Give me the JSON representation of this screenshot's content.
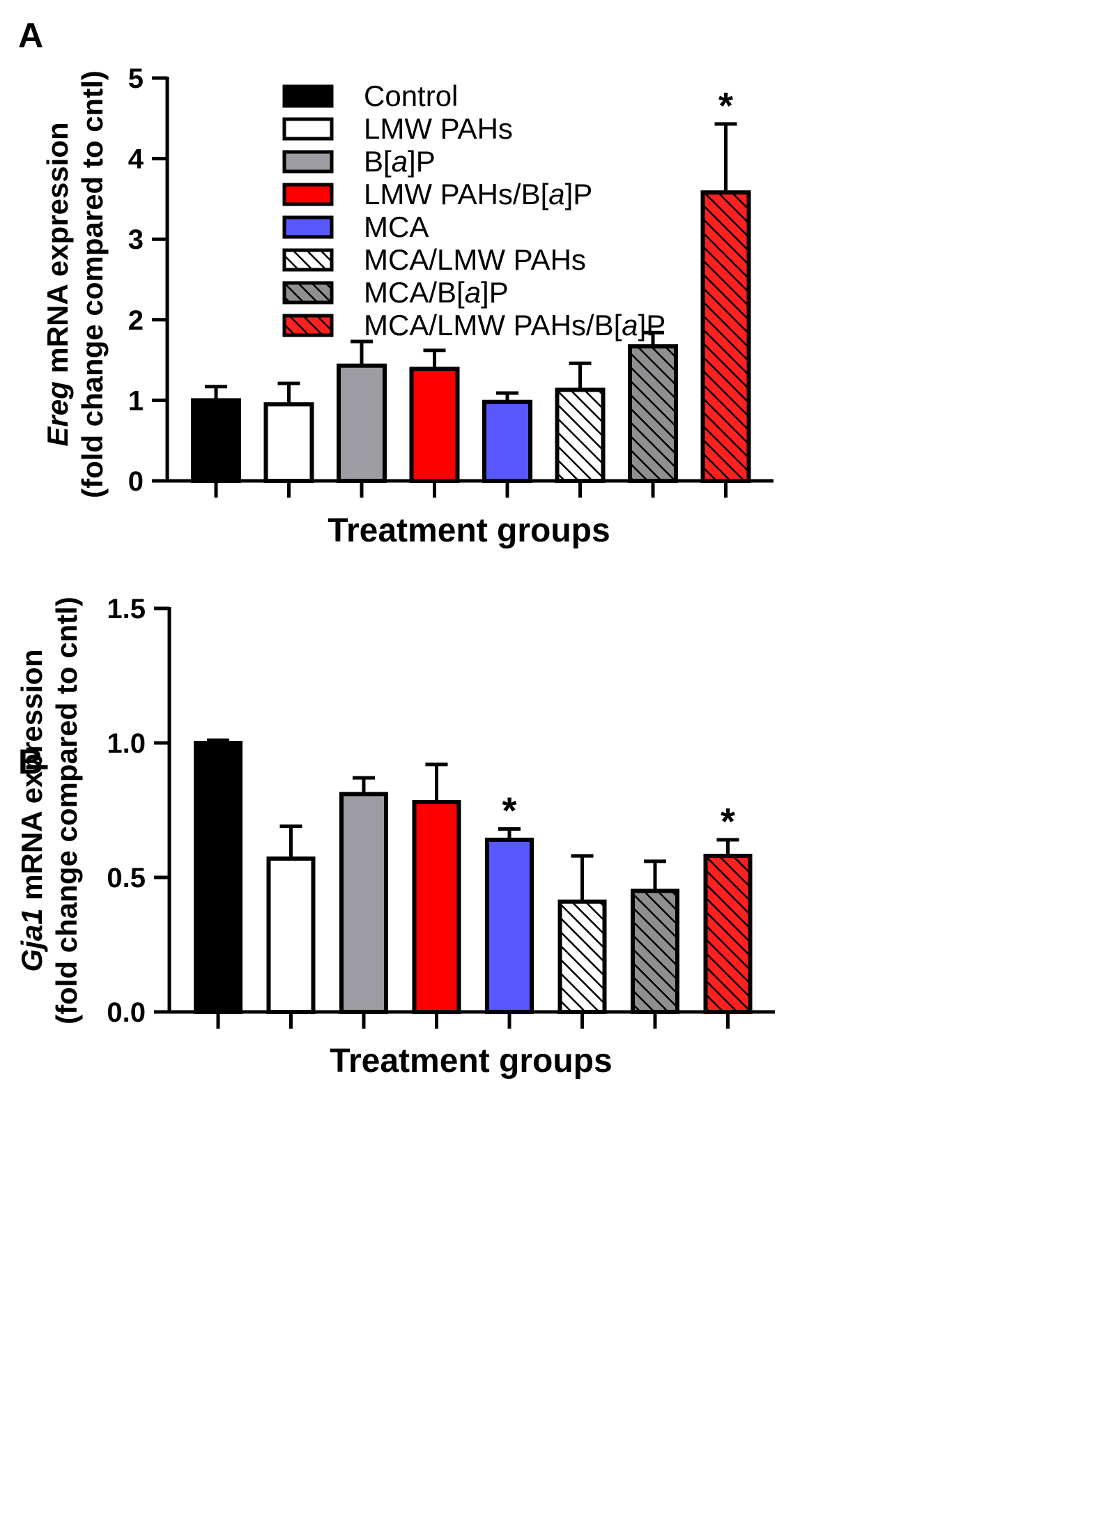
{
  "colors": {
    "black": "#000000",
    "white": "#ffffff",
    "gray": "#9d9ca2",
    "red": "#ff0000",
    "blue": "#5858ff",
    "hatch_white": "#ffffff",
    "hatch_gray": "#8f8f92",
    "hatch_red": "#ff2020"
  },
  "legend": [
    {
      "label_parts": [
        {
          "t": "Control"
        }
      ],
      "color": "black",
      "hatched": false
    },
    {
      "label_parts": [
        {
          "t": "LMW PAHs"
        }
      ],
      "color": "white",
      "hatched": false
    },
    {
      "label_parts": [
        {
          "t": "B["
        },
        {
          "t": "a",
          "i": true
        },
        {
          "t": "]P"
        }
      ],
      "color": "gray",
      "hatched": false
    },
    {
      "label_parts": [
        {
          "t": "LMW PAHs/B["
        },
        {
          "t": "a",
          "i": true
        },
        {
          "t": "]P"
        }
      ],
      "color": "red",
      "hatched": false
    },
    {
      "label_parts": [
        {
          "t": "MCA"
        }
      ],
      "color": "blue",
      "hatched": false
    },
    {
      "label_parts": [
        {
          "t": "MCA/LMW PAHs"
        }
      ],
      "color": "hatch_white",
      "hatched": true
    },
    {
      "label_parts": [
        {
          "t": "MCA/B["
        },
        {
          "t": "a",
          "i": true
        },
        {
          "t": "]P"
        }
      ],
      "color": "hatch_gray",
      "hatched": true
    },
    {
      "label_parts": [
        {
          "t": "MCA/LMW PAHs/B["
        },
        {
          "t": "a",
          "i": true
        },
        {
          "t": "]P"
        }
      ],
      "color": "hatch_red",
      "hatched": true
    }
  ],
  "chart_data": [
    {
      "panel": "A",
      "type": "bar",
      "categories": [
        "Control",
        "LMW PAHs",
        "B[a]P",
        "LMW PAHs/B[a]P",
        "MCA",
        "MCA/LMW PAHs",
        "MCA/B[a]P",
        "MCA/LMW PAHs/B[a]P"
      ],
      "values": [
        1.0,
        0.95,
        1.43,
        1.39,
        0.98,
        1.13,
        1.67,
        3.58
      ],
      "errors": [
        0.17,
        0.26,
        0.3,
        0.23,
        0.11,
        0.33,
        0.17,
        0.85
      ],
      "significance": [
        "",
        "",
        "",
        "",
        "",
        "",
        "",
        "*"
      ],
      "xlabel": "Treatment groups",
      "ylabel_parts": [
        {
          "t": "Ereg",
          "i": true
        },
        {
          "t": " mRNA expression"
        }
      ],
      "ylabel_line2": "(fold change compared to cntl)",
      "ylim": [
        0,
        5
      ],
      "yticks": [
        0,
        1,
        2,
        3,
        4,
        5
      ],
      "ytick_labels": [
        "0",
        "1",
        "2",
        "3",
        "4",
        "5"
      ],
      "legend_position": "top-left"
    },
    {
      "panel": "B",
      "type": "bar",
      "categories": [
        "Control",
        "LMW PAHs",
        "B[a]P",
        "LMW PAHs/B[a]P",
        "MCA",
        "MCA/LMW PAHs",
        "MCA/B[a]P",
        "MCA/LMW PAHs/B[a]P"
      ],
      "values": [
        1.0,
        0.57,
        0.81,
        0.78,
        0.64,
        0.41,
        0.45,
        0.58
      ],
      "errors": [
        0.01,
        0.12,
        0.06,
        0.14,
        0.04,
        0.17,
        0.11,
        0.06
      ],
      "significance": [
        "",
        "",
        "",
        "",
        "*",
        "",
        "",
        "*"
      ],
      "xlabel": "Treatment groups",
      "ylabel_parts": [
        {
          "t": "Gja1",
          "i": true
        },
        {
          "t": " mRNA expression"
        }
      ],
      "ylabel_line2": "(fold change compared to cntl)",
      "ylim": [
        0,
        1.5
      ],
      "yticks": [
        0,
        0.5,
        1.0,
        1.5
      ],
      "ytick_labels": [
        "0.0",
        "0.5",
        "1.0",
        "1.5"
      ]
    }
  ]
}
